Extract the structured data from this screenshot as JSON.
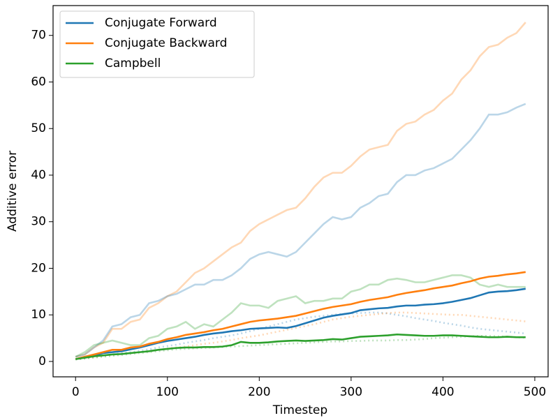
{
  "chart_data": {
    "type": "line",
    "x_label": "Timestep",
    "y_label": "Additive error",
    "x": [
      0,
      10,
      20,
      30,
      40,
      50,
      60,
      70,
      80,
      90,
      100,
      110,
      120,
      130,
      140,
      150,
      160,
      170,
      180,
      190,
      200,
      210,
      220,
      230,
      240,
      250,
      260,
      270,
      280,
      290,
      300,
      310,
      320,
      330,
      340,
      350,
      360,
      370,
      380,
      390,
      400,
      410,
      420,
      430,
      440,
      450,
      460,
      470,
      480,
      490
    ],
    "xlim": [
      -24.5,
      514.5
    ],
    "xticks": [
      0,
      100,
      200,
      300,
      400,
      500
    ],
    "ylim": [
      -3.3,
      76.4
    ],
    "yticks": [
      0,
      10,
      20,
      30,
      40,
      50,
      60,
      70
    ],
    "legend": "upper left",
    "series": [
      {
        "color": "#ff7f0e",
        "alpha": 0.3,
        "linestyle": "solid",
        "values": [
          1,
          1.5,
          3,
          4,
          7,
          7,
          8.5,
          9,
          11.5,
          12.5,
          14,
          15,
          17,
          19,
          20,
          21.5,
          23,
          24.5,
          25.5,
          28,
          29.5,
          30.5,
          31.5,
          32.5,
          33,
          35,
          37.5,
          39.5,
          40.5,
          40.5,
          42,
          44,
          45.5,
          46,
          46.5,
          49.5,
          51,
          51.5,
          53,
          54,
          56,
          57.5,
          60.5,
          62.5,
          65.5,
          67.5,
          68,
          69.5,
          70.5,
          72.8
        ]
      },
      {
        "color": "#1f77b4",
        "alpha": 0.3,
        "linestyle": "solid",
        "values": [
          1,
          1.5,
          3,
          4.5,
          7.5,
          8,
          9.5,
          10,
          12.5,
          13,
          14,
          14.5,
          15.5,
          16.5,
          16.5,
          17.5,
          17.5,
          18.5,
          20,
          22,
          23,
          23.5,
          23,
          22.5,
          23.5,
          25.5,
          27.5,
          29.5,
          31,
          30.5,
          31,
          33,
          34,
          35.5,
          36,
          38.5,
          40,
          40,
          41,
          41.5,
          42.5,
          43.5,
          45.5,
          47.5,
          50,
          53,
          53,
          53.5,
          54.5,
          55.3
        ]
      },
      {
        "color": "#2ca02c",
        "alpha": 0.3,
        "linestyle": "solid",
        "values": [
          1,
          2,
          3.5,
          4,
          4.5,
          4,
          3.5,
          3.5,
          5,
          5.5,
          7,
          7.5,
          8.5,
          7,
          8,
          7.5,
          9,
          10.5,
          12.5,
          12,
          12,
          11.5,
          13,
          13.5,
          14,
          12.5,
          13,
          13,
          13.5,
          13.5,
          15,
          15.5,
          16.5,
          16.5,
          17.5,
          17.8,
          17.5,
          17,
          17,
          17.5,
          18,
          18.5,
          18.5,
          18,
          16.5,
          16,
          16.5,
          16,
          16,
          16
        ]
      },
      {
        "color": "#1f77b4",
        "alpha": 0.3,
        "linestyle": "dotted",
        "values": [
          0.5,
          0.7,
          1,
          1.3,
          1.5,
          1.8,
          2,
          2.3,
          2.6,
          3,
          3.3,
          3.6,
          4,
          4.3,
          4.6,
          5,
          5.3,
          5.6,
          6,
          6.5,
          7,
          7.5,
          8,
          8.5,
          9,
          9.3,
          9.6,
          9.8,
          10,
          10.2,
          10.3,
          10.4,
          10.5,
          10.5,
          10.3,
          10,
          9.7,
          9.3,
          9,
          8.7,
          8.3,
          8,
          7.7,
          7.3,
          7,
          6.8,
          6.6,
          6.4,
          6.2,
          6
        ]
      },
      {
        "color": "#ff7f0e",
        "alpha": 0.3,
        "linestyle": "dotted",
        "values": [
          0.5,
          0.7,
          0.9,
          1.2,
          1.4,
          1.6,
          1.8,
          2,
          2.2,
          2.5,
          2.8,
          3,
          3.2,
          3.5,
          3.8,
          4,
          4.3,
          4.6,
          5,
          5.3,
          5.6,
          6,
          6.4,
          6.8,
          7.2,
          7.6,
          8,
          8.5,
          9,
          9.3,
          9.6,
          9.8,
          10,
          10.2,
          10.4,
          10.5,
          10.5,
          10.4,
          10.3,
          10.2,
          10.1,
          10,
          10,
          9.8,
          9.6,
          9.4,
          9.2,
          9,
          8.8,
          8.6
        ]
      },
      {
        "color": "#2ca02c",
        "alpha": 0.3,
        "linestyle": "dotted",
        "values": [
          0.4,
          0.6,
          0.8,
          1,
          1.2,
          1.4,
          1.6,
          1.8,
          2,
          2.2,
          2.4,
          2.6,
          2.7,
          2.8,
          2.9,
          3,
          3.1,
          3.2,
          3.3,
          3.4,
          3.5,
          3.6,
          3.7,
          3.8,
          3.9,
          4,
          4.1,
          4.2,
          4.3,
          4.3,
          4.4,
          4.4,
          4.5,
          4.5,
          4.5,
          4.6,
          4.6,
          4.7,
          4.8,
          5,
          5.1,
          5.2,
          5.3,
          5.4,
          5.5,
          5.5,
          5.4,
          5.3,
          5.2,
          5.1
        ]
      },
      {
        "name": "Conjugate Forward",
        "color": "#1f77b4",
        "alpha": 1,
        "linestyle": "solid",
        "values": [
          0.5,
          1,
          1.3,
          1.8,
          2,
          2.2,
          2.6,
          3,
          3.5,
          4,
          4.4,
          4.7,
          5,
          5.3,
          5.7,
          6,
          6.2,
          6.5,
          6.7,
          7,
          7.1,
          7.2,
          7.3,
          7.2,
          7.6,
          8.2,
          8.8,
          9.4,
          9.8,
          10.1,
          10.4,
          11,
          11.2,
          11.4,
          11.5,
          11.8,
          12,
          12,
          12.2,
          12.3,
          12.5,
          12.8,
          13.2,
          13.6,
          14.2,
          14.8,
          15,
          15.1,
          15.3,
          15.6
        ]
      },
      {
        "name": "Conjugate Backward",
        "color": "#ff7f0e",
        "alpha": 1,
        "linestyle": "solid",
        "values": [
          0.5,
          1,
          1.5,
          2,
          2.5,
          2.5,
          3,
          3.2,
          3.8,
          4.2,
          4.8,
          5.2,
          5.7,
          6,
          6.3,
          6.7,
          7,
          7.5,
          8,
          8.5,
          8.8,
          9,
          9.2,
          9.5,
          9.8,
          10.3,
          10.8,
          11.3,
          11.7,
          12,
          12.3,
          12.8,
          13.2,
          13.5,
          13.8,
          14.3,
          14.7,
          15,
          15.3,
          15.7,
          16,
          16.3,
          16.8,
          17.2,
          17.8,
          18.2,
          18.4,
          18.7,
          18.9,
          19.2
        ]
      },
      {
        "name": "Campbell",
        "color": "#2ca02c",
        "alpha": 1,
        "linestyle": "solid",
        "values": [
          0.5,
          0.8,
          1.1,
          1.3,
          1.5,
          1.6,
          1.8,
          2,
          2.2,
          2.5,
          2.7,
          2.9,
          3,
          3,
          3.1,
          3.1,
          3.2,
          3.5,
          4.2,
          4,
          4,
          4.1,
          4.3,
          4.4,
          4.5,
          4.4,
          4.5,
          4.6,
          4.8,
          4.7,
          5,
          5.3,
          5.4,
          5.5,
          5.6,
          5.8,
          5.7,
          5.6,
          5.5,
          5.5,
          5.6,
          5.6,
          5.5,
          5.4,
          5.3,
          5.2,
          5.2,
          5.3,
          5.2,
          5.2
        ]
      }
    ]
  }
}
